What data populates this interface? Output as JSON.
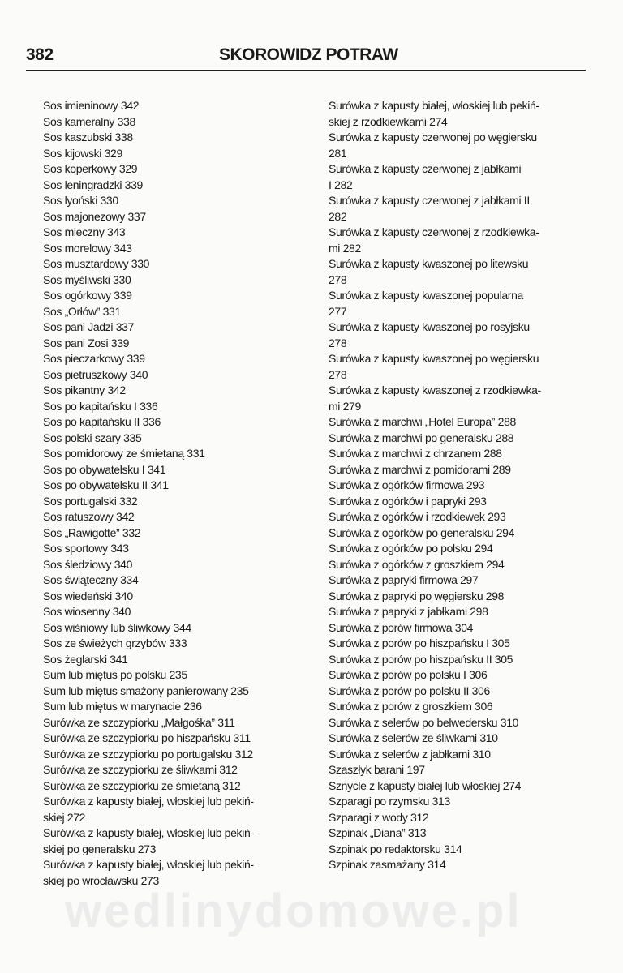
{
  "header": {
    "page_number": "382",
    "title": "SKOROWIDZ POTRAW"
  },
  "watermark": "wedlinydomowe.pl",
  "left_column": [
    [
      "Sos imieninowy 342"
    ],
    [
      "Sos kameralny 338"
    ],
    [
      "Sos kaszubski 338"
    ],
    [
      "Sos kijowski 329"
    ],
    [
      "Sos koperkowy 329"
    ],
    [
      "Sos leningradzki 339"
    ],
    [
      "Sos lyoński 330"
    ],
    [
      "Sos majonezowy 337"
    ],
    [
      "Sos mleczny 343"
    ],
    [
      "Sos morelowy 343"
    ],
    [
      "Sos musztardowy 330"
    ],
    [
      "Sos myśliwski 330"
    ],
    [
      "Sos ogórkowy 339"
    ],
    [
      "Sos „Orłów” 331"
    ],
    [
      "Sos pani Jadzi 337"
    ],
    [
      "Sos pani Zosi 339"
    ],
    [
      "Sos pieczarkowy 339"
    ],
    [
      "Sos pietruszkowy 340"
    ],
    [
      "Sos pikantny 342"
    ],
    [
      "Sos po kapitańsku I 336"
    ],
    [
      "Sos po kapitańsku II 336"
    ],
    [
      "Sos polski szary 335"
    ],
    [
      "Sos pomidorowy ze śmietaną 331"
    ],
    [
      "Sos po obywatelsku I 341"
    ],
    [
      "Sos po obywatelsku II 341"
    ],
    [
      "Sos portugalski 332"
    ],
    [
      "Sos ratuszowy 342"
    ],
    [
      "Sos „Rawigotte” 332"
    ],
    [
      "Sos sportowy 343"
    ],
    [
      "Sos śledziowy 340"
    ],
    [
      "Sos świąteczny 334"
    ],
    [
      "Sos wiedeński 340"
    ],
    [
      "Sos wiosenny 340"
    ],
    [
      "Sos wiśniowy lub śliwkowy 344"
    ],
    [
      "Sos ze świeżych grzybów 333"
    ],
    [
      "Sos żeglarski 341"
    ],
    [
      "Sum lub miętus po polsku 235"
    ],
    [
      "Sum lub miętus smażony panierowany 235"
    ],
    [
      "Sum lub miętus w marynacie 236"
    ],
    [
      "Surówka ze szczypiorku „Małgośka” 311"
    ],
    [
      "Surówka ze szczypiorku po hiszpańsku 311"
    ],
    [
      "Surówka ze szczypiorku po portugalsku 312"
    ],
    [
      "Surówka ze szczypiorku ze śliwkami 312"
    ],
    [
      "Surówka ze szczypiorku ze śmietaną 312"
    ],
    [
      "Surówka z kapusty białej, włoskiej lub pekiń-",
      "skiej 272"
    ],
    [
      "Surówka z kapusty białej, włoskiej lub pekiń-",
      "skiej po generalsku 273"
    ],
    [
      "Surówka z kapusty białej, włoskiej lub pekiń-",
      "skiej po wrocławsku 273"
    ]
  ],
  "right_column": [
    [
      "Surówka z kapusty białej, włoskiej lub pekiń-",
      "skiej z rzodkiewkami 274"
    ],
    [
      "Surówka z kapusty czerwonej po węgiersku",
      "281"
    ],
    [
      "Surówka z kapusty czerwonej z jabłkami",
      "I 282"
    ],
    [
      "Surówka z kapusty czerwonej z jabłkami II",
      "282"
    ],
    [
      "Surówka z kapusty czerwonej z rzodkiewka-",
      "mi 282"
    ],
    [
      "Surówka z kapusty kwaszonej po litewsku",
      "278"
    ],
    [
      "Surówka z kapusty kwaszonej popularna",
      "277"
    ],
    [
      "Surówka z kapusty kwaszonej po rosyjsku",
      "278"
    ],
    [
      "Surówka z kapusty kwaszonej po węgiersku",
      "278"
    ],
    [
      "Surówka z kapusty kwaszonej z rzodkiewka-",
      "mi 279"
    ],
    [
      "Surówka z marchwi „Hotel Europa” 288"
    ],
    [
      "Surówka z marchwi po generalsku 288"
    ],
    [
      "Surówka z marchwi z chrzanem 288"
    ],
    [
      "Surówka z marchwi z pomidorami 289"
    ],
    [
      "Surówka z ogórków firmowa 293"
    ],
    [
      "Surówka z ogórków i papryki 293"
    ],
    [
      "Surówka z ogórków i rzodkiewek 293"
    ],
    [
      "Surówka z ogórków po generalsku 294"
    ],
    [
      "Surówka z ogórków po polsku 294"
    ],
    [
      "Surówka z ogórków z groszkiem 294"
    ],
    [
      "Surówka z papryki firmowa 297"
    ],
    [
      "Surówka z papryki po węgiersku 298"
    ],
    [
      "Surówka z papryki z jabłkami 298"
    ],
    [
      "Surówka z porów firmowa 304"
    ],
    [
      "Surówka z porów po hiszpańsku I 305"
    ],
    [
      "Surówka z porów po hiszpańsku II 305"
    ],
    [
      "Surówka z porów po polsku I 306"
    ],
    [
      "Surówka z porów po polsku II 306"
    ],
    [
      "Surówka z porów z groszkiem 306"
    ],
    [
      "Surówka z selerów po belwedersku 310"
    ],
    [
      "Surówka z selerów ze śliwkami 310"
    ],
    [
      "Surówka z selerów z jabłkami 310"
    ],
    [
      "Szaszłyk barani 197"
    ],
    [
      "Sznycle z kapusty białej lub włoskiej 274"
    ],
    [
      "Szparagi po rzymsku 313"
    ],
    [
      "Szparagi z wody 312"
    ],
    [
      "Szpinak „Diana” 313"
    ],
    [
      "Szpinak po redaktorsku 314"
    ],
    [
      "Szpinak zasmażany 314"
    ]
  ]
}
